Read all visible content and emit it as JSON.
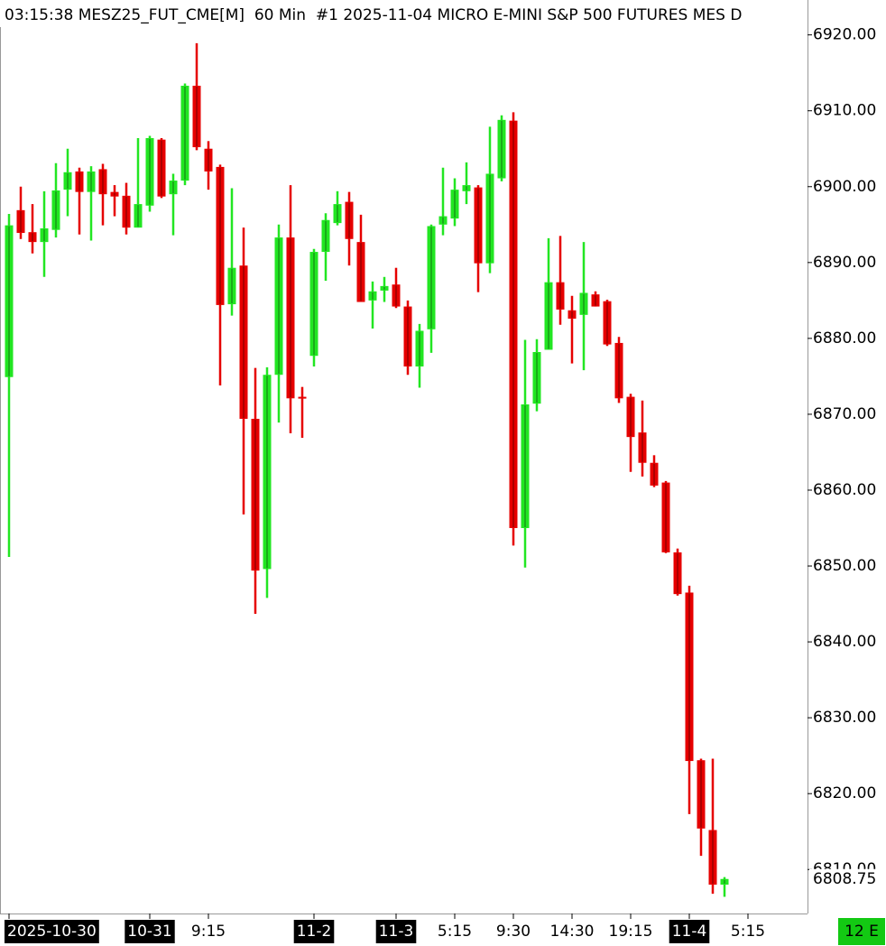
{
  "chart_data": {
    "type": "candlestick",
    "title": "03:15:38 MESZ25_FUT_CME[M]  60 Min  #1 2025-11-04 MICRO E-MINI S&P 500 FUTURES MES D",
    "up_color": "#22e622",
    "down_color": "#e60000",
    "open": [
      6874.9,
      6896.9,
      6894.0,
      6892.7,
      6894.3,
      6899.6,
      6902.0,
      6899.3,
      6902.3,
      6899.3,
      6898.8,
      6894.6,
      6897.5,
      6906.2,
      6899.0,
      6900.8,
      6913.3,
      6905.0,
      6902.6,
      6884.5,
      6889.6,
      6869.4,
      6849.6,
      6875.2,
      6893.3,
      6872.3,
      6877.7,
      6891.4,
      6895.2,
      6898.0,
      6892.7,
      6885.0,
      6886.3,
      6887.1,
      6884.2,
      6876.3,
      6881.2,
      6895.0,
      6895.8,
      6899.4,
      6899.9,
      6889.9,
      6901.1,
      6908.7,
      6855.0,
      6871.4,
      6878.5,
      6887.4,
      6883.7,
      6883.1,
      6885.8,
      6884.9,
      6879.4,
      6872.3,
      6867.6,
      6863.6,
      6861.0,
      6851.8,
      6846.5,
      6824.4,
      6815.2,
      6808.0
    ],
    "high": [
      6896.4,
      6900.0,
      6897.7,
      6899.4,
      6903.1,
      6905.0,
      6902.5,
      6902.7,
      6903.0,
      6900.2,
      6900.5,
      6906.4,
      6906.7,
      6906.4,
      6901.7,
      6913.6,
      6918.9,
      6906.0,
      6902.9,
      6899.8,
      6894.6,
      6876.1,
      6876.2,
      6895.0,
      6900.2,
      6873.6,
      6891.8,
      6896.5,
      6899.4,
      6899.3,
      6896.3,
      6887.5,
      6888.1,
      6889.3,
      6885.0,
      6881.9,
      6895.0,
      6902.5,
      6901.1,
      6903.2,
      6900.2,
      6907.9,
      6909.4,
      6909.8,
      6879.8,
      6879.9,
      6893.2,
      6893.5,
      6885.6,
      6892.7,
      6886.2,
      6885.1,
      6880.2,
      6872.7,
      6871.8,
      6864.6,
      6861.2,
      6852.3,
      6847.4,
      6824.6,
      6824.6,
      6809.0
    ],
    "low": [
      6851.2,
      6893.1,
      6891.2,
      6888.1,
      6893.3,
      6896.1,
      6893.7,
      6892.9,
      6894.9,
      6896.1,
      6893.7,
      6894.6,
      6896.7,
      6898.5,
      6893.6,
      6900.2,
      6904.8,
      6899.6,
      6873.8,
      6883.0,
      6856.8,
      6843.7,
      6845.8,
      6868.9,
      6867.5,
      6866.9,
      6876.3,
      6887.6,
      6894.9,
      6889.6,
      6884.8,
      6881.3,
      6884.8,
      6884.0,
      6875.2,
      6873.5,
      6878.1,
      6893.6,
      6894.8,
      6897.7,
      6886.1,
      6888.6,
      6900.7,
      6852.7,
      6849.8,
      6870.4,
      6878.5,
      6881.8,
      6876.7,
      6875.8,
      6884.2,
      6879.0,
      6871.5,
      6862.4,
      6861.8,
      6860.4,
      6851.7,
      6846.1,
      6817.3,
      6811.8,
      6806.8,
      6806.4
    ],
    "close": [
      6894.9,
      6893.9,
      6892.7,
      6894.5,
      6899.5,
      6901.9,
      6899.3,
      6902.0,
      6899.0,
      6898.7,
      6894.6,
      6897.7,
      6906.4,
      6898.7,
      6900.8,
      6913.3,
      6905.2,
      6902.0,
      6884.4,
      6889.3,
      6869.4,
      6849.4,
      6875.2,
      6893.3,
      6872.1,
      6872.1,
      6891.4,
      6895.6,
      6897.7,
      6893.1,
      6884.8,
      6886.2,
      6886.9,
      6884.2,
      6876.3,
      6881.0,
      6894.8,
      6896.1,
      6899.6,
      6900.2,
      6889.9,
      6901.7,
      6908.8,
      6855.0,
      6871.3,
      6878.2,
      6887.4,
      6883.8,
      6882.6,
      6886.0,
      6884.2,
      6879.2,
      6872.1,
      6867.0,
      6863.6,
      6860.6,
      6851.8,
      6846.3,
      6824.3,
      6815.4,
      6808.0,
      6808.75
    ],
    "ylim": [
      6804.2,
      6924.6
    ],
    "yticks": [
      {
        "value": 6920,
        "label": "6920.00"
      },
      {
        "value": 6910,
        "label": "6910.00"
      },
      {
        "value": 6900,
        "label": "6900.00"
      },
      {
        "value": 6890,
        "label": "6890.00"
      },
      {
        "value": 6880,
        "label": "6880.00"
      },
      {
        "value": 6870,
        "label": "6870.00"
      },
      {
        "value": 6860,
        "label": "6860.00"
      },
      {
        "value": 6850,
        "label": "6850.00"
      },
      {
        "value": 6840,
        "label": "6840.00"
      },
      {
        "value": 6830,
        "label": "6830.00"
      },
      {
        "value": 6820,
        "label": "6820.00"
      },
      {
        "value": 6810,
        "label": "6810.00"
      }
    ],
    "last_price": 6808.75,
    "time_labels": [
      {
        "text": "2025-10-30",
        "bar": 0,
        "date": true
      },
      {
        "text": "10-31",
        "bar": 12,
        "date": true
      },
      {
        "text": "9:15",
        "bar": 17,
        "date": false
      },
      {
        "text": "11-2",
        "bar": 26,
        "date": true
      },
      {
        "text": "11-3",
        "bar": 33,
        "date": true
      },
      {
        "text": "5:15",
        "bar": 38,
        "date": false
      },
      {
        "text": "9:30",
        "bar": 43,
        "date": false
      },
      {
        "text": "14:30",
        "bar": 48,
        "date": false
      },
      {
        "text": "19:15",
        "bar": 53,
        "date": false
      },
      {
        "text": "11-4",
        "bar": 58,
        "date": true
      },
      {
        "text": "5:15",
        "bar": 63,
        "date": false
      }
    ],
    "status": "12 E"
  }
}
